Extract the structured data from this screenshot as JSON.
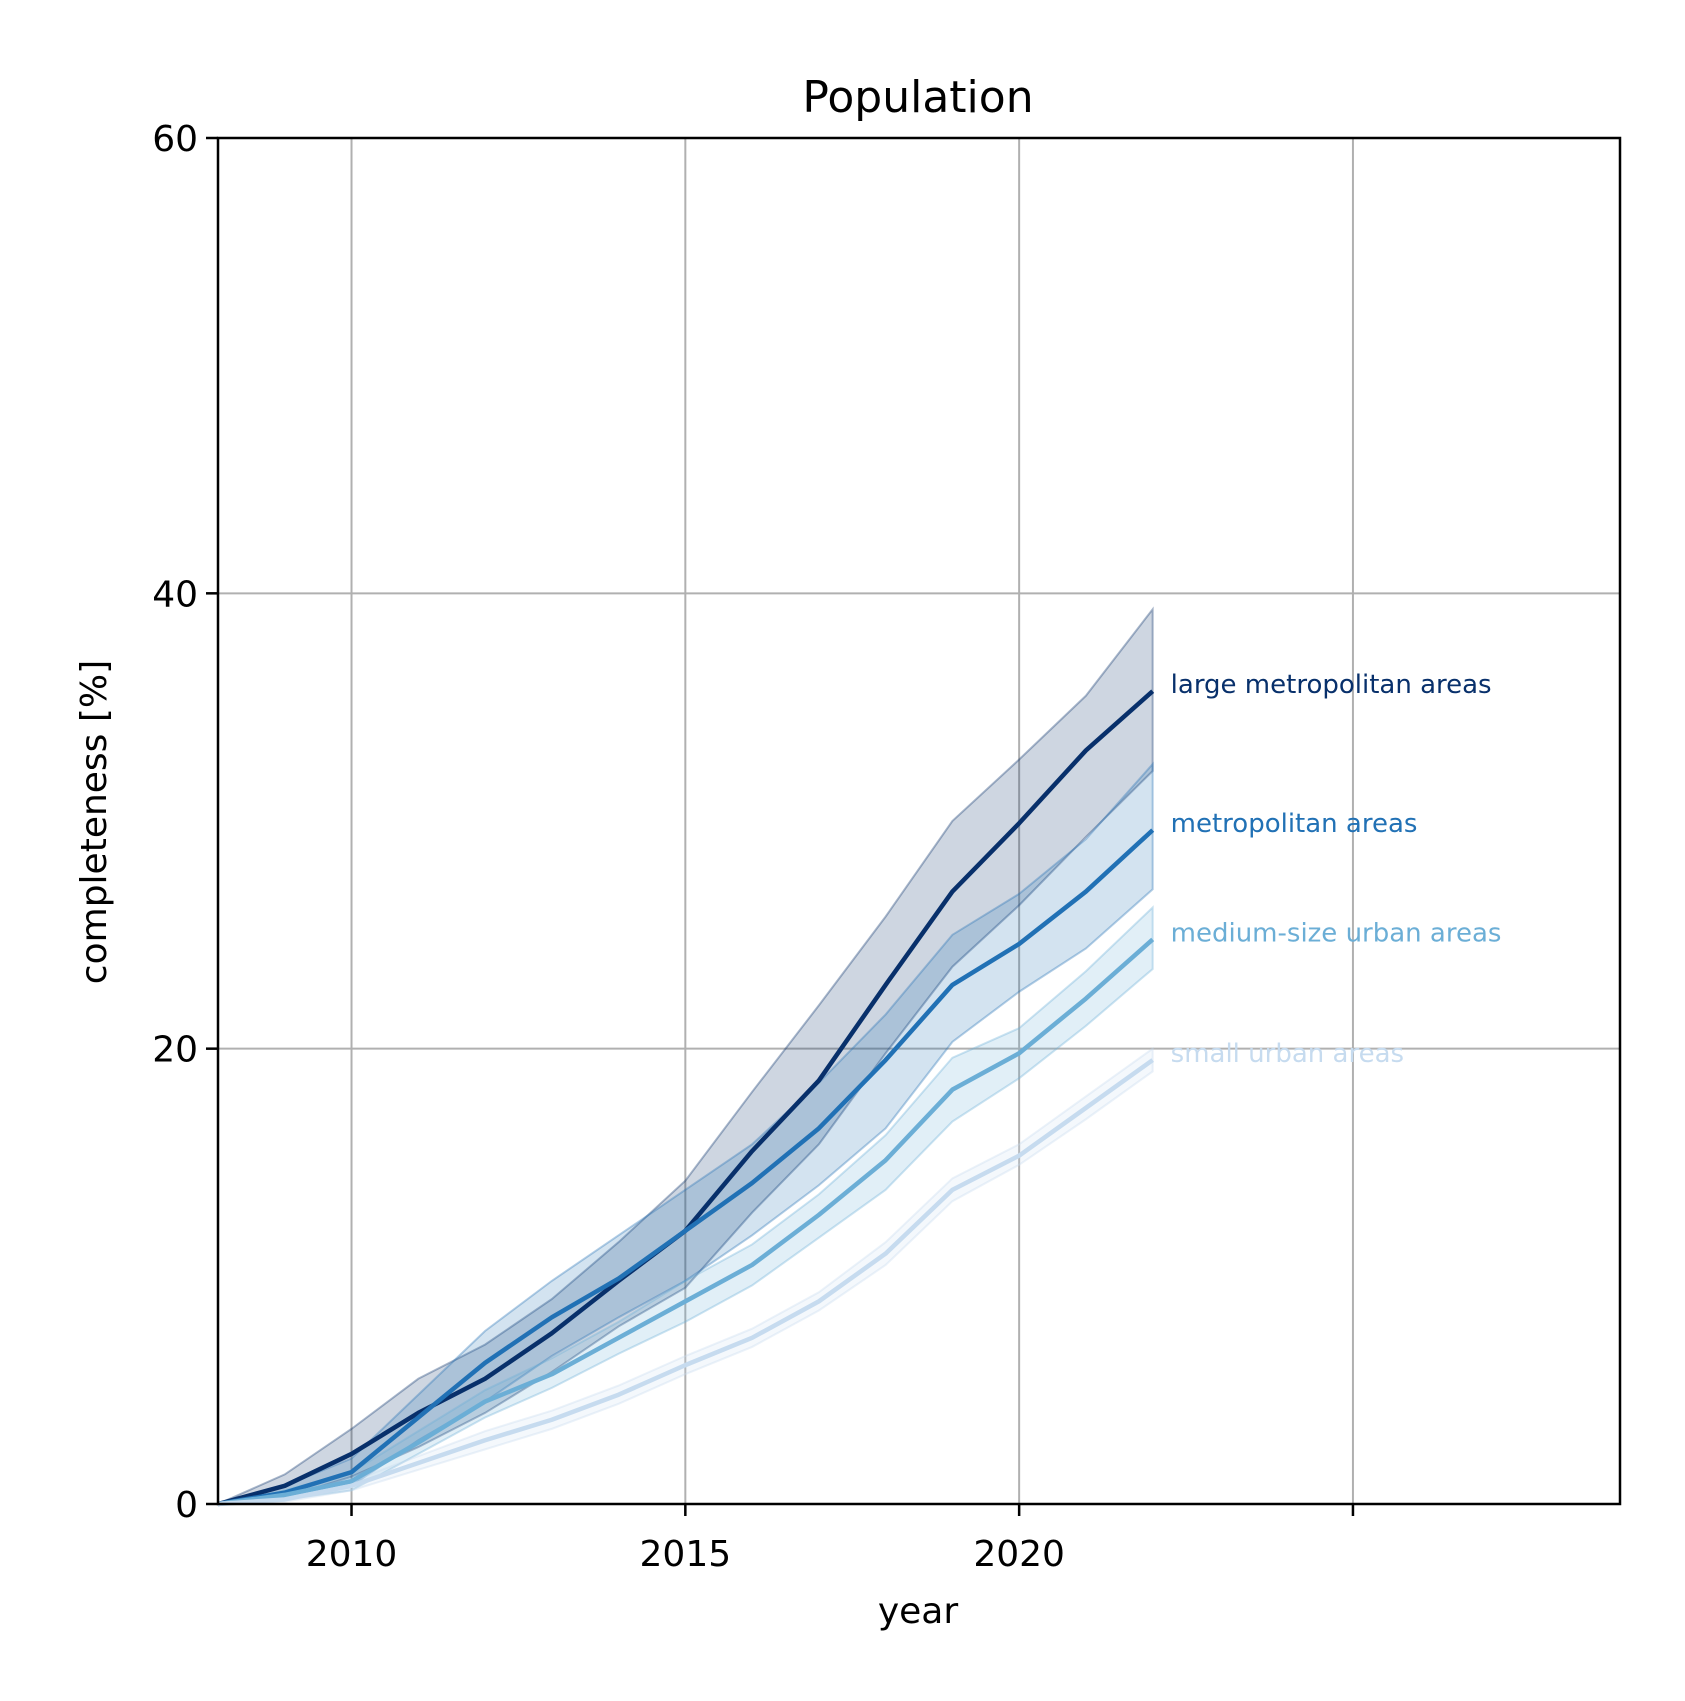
{
  "chart_data": {
    "type": "line",
    "title": "Population",
    "xlabel": "year",
    "ylabel": "completeness [%]",
    "xlim": [
      2008,
      2029
    ],
    "ylim": [
      0,
      60
    ],
    "xticks": [
      2010,
      2015,
      2020,
      2025
    ],
    "xtick_labels": [
      "2010",
      "2015",
      "2020",
      ""
    ],
    "yticks": [
      0,
      20,
      40,
      60
    ],
    "ytick_labels": [
      "0",
      "20",
      "40",
      "60"
    ],
    "grid": true,
    "legend": "inline labels at line ends",
    "x": [
      2008,
      2009,
      2010,
      2011,
      2012,
      2013,
      2014,
      2015,
      2016,
      2017,
      2018,
      2019,
      2020,
      2021,
      2022
    ],
    "series": [
      {
        "name": "large metropolitan areas",
        "color": "#08306b",
        "band_opacity": 0.2,
        "values": [
          0,
          0.8,
          2.2,
          4.0,
          5.5,
          7.5,
          9.8,
          12.0,
          15.5,
          18.6,
          22.8,
          26.9,
          29.9,
          33.1,
          35.7
        ],
        "lower": [
          0,
          0.3,
          1.2,
          2.5,
          4.0,
          5.8,
          7.8,
          9.5,
          12.8,
          15.8,
          19.8,
          23.6,
          26.3,
          29.3,
          32.2
        ],
        "upper": [
          0,
          1.3,
          3.3,
          5.5,
          7.0,
          9.0,
          11.5,
          14.2,
          18.1,
          21.9,
          25.8,
          30.0,
          32.7,
          35.5,
          39.3
        ]
      },
      {
        "name": "metropolitan areas",
        "color": "#2171b5",
        "band_opacity": 0.2,
        "values": [
          0,
          0.5,
          1.4,
          3.8,
          6.2,
          8.2,
          9.9,
          12.0,
          14.1,
          16.5,
          19.5,
          22.8,
          24.6,
          26.9,
          29.6
        ],
        "lower": [
          0,
          0.2,
          0.8,
          2.8,
          4.5,
          6.5,
          8.2,
          9.8,
          11.8,
          14.0,
          16.5,
          20.3,
          22.5,
          24.4,
          27.0
        ],
        "upper": [
          0,
          0.8,
          2.0,
          4.8,
          7.6,
          9.8,
          11.8,
          13.8,
          15.8,
          18.5,
          21.5,
          25.0,
          26.8,
          29.2,
          32.5
        ]
      },
      {
        "name": "medium-size urban areas",
        "color": "#6baed6",
        "band_opacity": 0.2,
        "values": [
          0,
          0.4,
          1.0,
          2.7,
          4.5,
          5.7,
          7.3,
          8.9,
          10.5,
          12.7,
          15.1,
          18.2,
          19.8,
          22.2,
          24.8
        ],
        "lower": [
          0,
          0.2,
          0.6,
          2.2,
          3.8,
          5.1,
          6.6,
          8.0,
          9.6,
          11.7,
          13.8,
          16.8,
          18.7,
          21.0,
          23.5
        ],
        "upper": [
          0,
          0.6,
          1.4,
          3.2,
          5.0,
          6.4,
          8.0,
          9.8,
          11.4,
          13.6,
          16.2,
          19.6,
          20.9,
          23.4,
          26.2
        ]
      },
      {
        "name": "small urban areas",
        "color": "#c6dbef",
        "band_opacity": 0.2,
        "values": [
          0,
          0.2,
          0.8,
          1.8,
          2.8,
          3.7,
          4.8,
          6.1,
          7.3,
          8.9,
          11.0,
          13.8,
          15.3,
          17.4,
          19.5
        ],
        "lower": [
          0,
          0.1,
          0.6,
          1.5,
          2.4,
          3.3,
          4.4,
          5.7,
          6.9,
          8.5,
          10.5,
          13.3,
          14.9,
          16.9,
          19.0
        ],
        "upper": [
          0,
          0.3,
          1.0,
          2.1,
          3.2,
          4.1,
          5.2,
          6.5,
          7.7,
          9.3,
          11.5,
          14.3,
          15.8,
          17.9,
          20.0
        ]
      }
    ]
  }
}
